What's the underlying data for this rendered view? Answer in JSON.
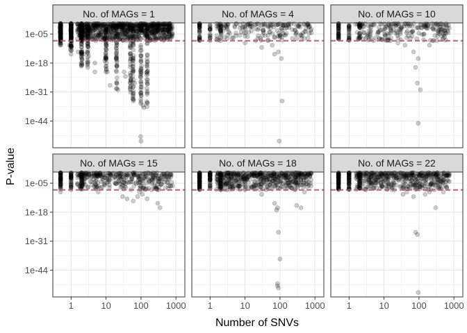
{
  "chart_data": {
    "type": "scatter",
    "layout": "facet-grid 2x3",
    "xlabel": "Number of SNVs",
    "ylabel": "P-value",
    "x_scale": "log10",
    "xlim": [
      0.3,
      1800
    ],
    "x_ticks": [
      1,
      10,
      100,
      1000
    ],
    "x_tick_labels": [
      "1",
      "10",
      "100",
      "1000"
    ],
    "y_scale": "log10 (reversed)",
    "ylim_log10": [
      0,
      -56
    ],
    "y_ticks_log10": [
      -5,
      -18,
      -31,
      -44
    ],
    "y_tick_labels": [
      "1e-05",
      "1e-18",
      "1e-31",
      "1e-44"
    ],
    "threshold": {
      "p_value": 1e-08,
      "log10": -8,
      "style": "dashed",
      "color": "#b05a6a"
    },
    "point_color": "#000000",
    "point_alpha": 0.2,
    "grid": true,
    "facet_label_prefix": "No. of MAGs = ",
    "panels": [
      {
        "label": "No. of MAGs = 1",
        "mags": 1,
        "approx_points": 1400,
        "outliers": [
          [
            0.9,
            -10
          ],
          [
            0.95,
            -12
          ],
          [
            1,
            -14
          ],
          [
            1.6,
            -13
          ],
          [
            2,
            -19
          ],
          [
            2.3,
            -14
          ],
          [
            3.2,
            -15
          ],
          [
            3,
            -20
          ],
          [
            4.8,
            -18
          ],
          [
            4.8,
            -22
          ],
          [
            9.2,
            -17
          ],
          [
            11,
            -22
          ],
          [
            13,
            -28
          ],
          [
            20,
            -27
          ],
          [
            22,
            -30
          ],
          [
            33,
            -22
          ],
          [
            36,
            -24
          ],
          [
            52,
            -25
          ],
          [
            58,
            -34
          ],
          [
            60,
            -35
          ],
          [
            66,
            -27
          ],
          [
            115,
            -37
          ],
          [
            120,
            -38
          ],
          [
            98,
            -51
          ],
          [
            100,
            -53
          ]
        ],
        "dense_columns": [
          [
            0.5,
            -10
          ],
          [
            1,
            -13
          ],
          [
            2,
            -20
          ],
          [
            3,
            -19
          ],
          [
            10,
            -22
          ],
          [
            20,
            -30
          ],
          [
            50,
            -33
          ],
          [
            60,
            -35
          ],
          [
            100,
            -38
          ],
          [
            150,
            -38
          ]
        ]
      },
      {
        "label": "No. of MAGs = 4",
        "mags": 4,
        "approx_points": 320,
        "outliers": [
          [
            0.5,
            -7
          ],
          [
            2,
            -8
          ],
          [
            10,
            -9
          ],
          [
            20,
            -8
          ],
          [
            30,
            -11
          ],
          [
            60,
            -10
          ],
          [
            70,
            -14
          ],
          [
            90,
            -13
          ],
          [
            110,
            -16
          ],
          [
            115,
            -35
          ],
          [
            95,
            -53
          ],
          [
            300,
            -7
          ],
          [
            500,
            -7
          ]
        ]
      },
      {
        "label": "No. of MAGs = 10",
        "mags": 10,
        "approx_points": 380,
        "outliers": [
          [
            0.5,
            -6
          ],
          [
            3,
            -7
          ],
          [
            5,
            -8
          ],
          [
            15,
            -8
          ],
          [
            25,
            -9
          ],
          [
            40,
            -10
          ],
          [
            70,
            -13
          ],
          [
            80,
            -20
          ],
          [
            95,
            -16
          ],
          [
            90,
            -27
          ],
          [
            110,
            -30
          ],
          [
            95,
            -45
          ],
          [
            200,
            -10
          ],
          [
            250,
            -8
          ],
          [
            500,
            -7
          ]
        ]
      },
      {
        "label": "No. of MAGs = 15",
        "mags": 15,
        "approx_points": 560,
        "outliers": [
          [
            0.5,
            -9
          ],
          [
            2,
            -5
          ],
          [
            3,
            -7
          ],
          [
            6,
            -9
          ],
          [
            30,
            -11
          ],
          [
            40,
            -12
          ],
          [
            60,
            -13
          ],
          [
            80,
            -11
          ],
          [
            90,
            -9
          ],
          [
            110,
            -10
          ],
          [
            150,
            -12
          ],
          [
            200,
            -8
          ],
          [
            300,
            -14
          ],
          [
            350,
            -16
          ],
          [
            500,
            -7
          ]
        ]
      },
      {
        "label": "No. of MAGs = 18",
        "mags": 18,
        "approx_points": 900,
        "outliers": [
          [
            0.5,
            -6
          ],
          [
            2,
            -6
          ],
          [
            3,
            -8
          ],
          [
            10,
            -8
          ],
          [
            30,
            -10
          ],
          [
            70,
            -14
          ],
          [
            80,
            -17
          ],
          [
            85,
            -16
          ],
          [
            90,
            -27
          ],
          [
            100,
            -39
          ],
          [
            85,
            -50
          ],
          [
            85,
            -51
          ],
          [
            90,
            -52
          ],
          [
            300,
            -15
          ],
          [
            400,
            -16
          ],
          [
            500,
            -9
          ]
        ]
      },
      {
        "label": "No. of MAGs = 22",
        "mags": 22,
        "approx_points": 800,
        "outliers": [
          [
            0.5,
            -5
          ],
          [
            1,
            -7
          ],
          [
            3,
            -8
          ],
          [
            20,
            -8
          ],
          [
            35,
            -10
          ],
          [
            45,
            -9
          ],
          [
            70,
            -11
          ],
          [
            80,
            -27
          ],
          [
            90,
            -28
          ],
          [
            95,
            -54
          ],
          [
            150,
            -10
          ],
          [
            200,
            -9
          ],
          [
            300,
            -16
          ],
          [
            500,
            -9
          ]
        ]
      }
    ]
  }
}
